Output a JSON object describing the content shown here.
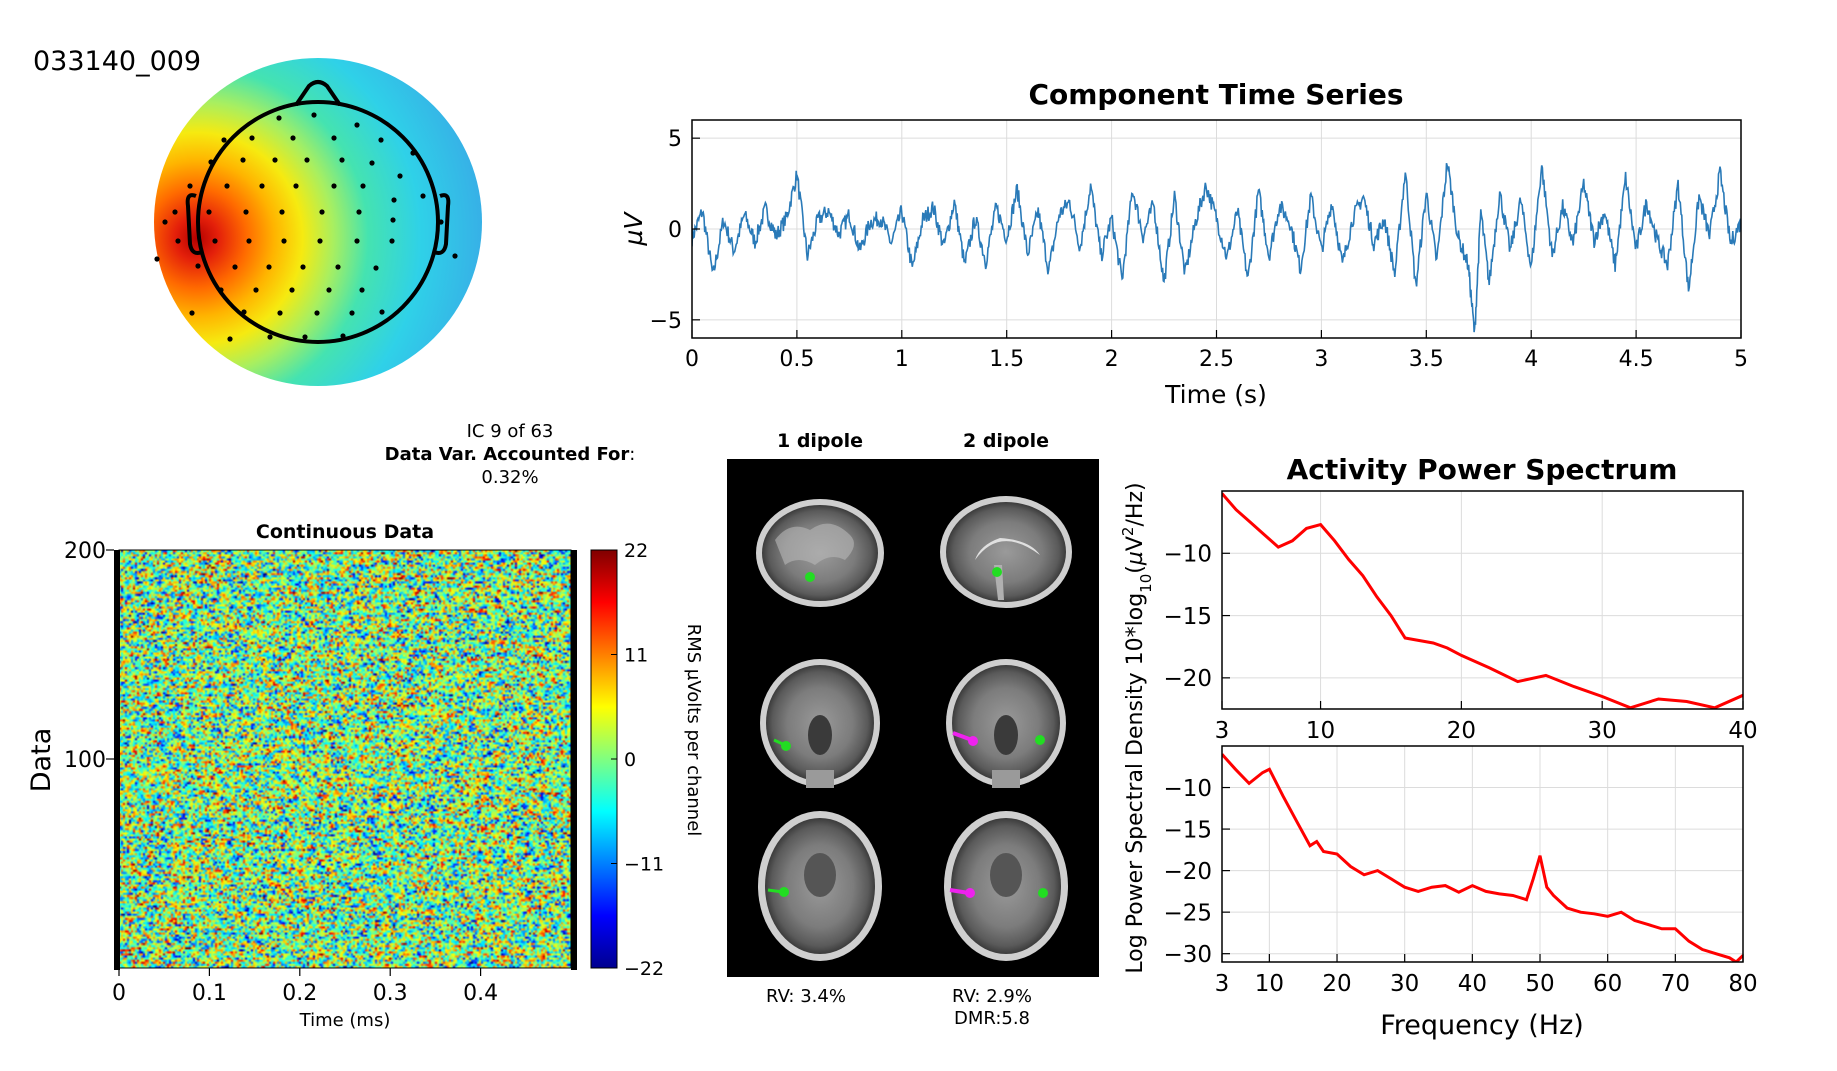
{
  "figure": {
    "component_id": "033140_009",
    "ic_label": "IC 9 of 63",
    "variance_label": "Data Var. Accounted For",
    "variance_value": "0.32%"
  },
  "colors": {
    "trace": "#2a7ab8",
    "spectrum": "#ff0000",
    "axis": "#000000",
    "grid": "#dcdcdc",
    "dipole_1": "#22dd22",
    "dipole_2": "#ee22ee"
  },
  "scalp_map": {
    "channel_count": 63,
    "colormap": "jet",
    "max_region": "left temporal",
    "min_region": "right/posterior"
  },
  "dipole_panel": {
    "col1_title": "1 dipole",
    "col2_title": "2 dipole",
    "views": [
      "sagittal",
      "coronal",
      "axial"
    ],
    "rv1": "RV: 3.4%",
    "rv2": "RV: 2.9%",
    "dmr": "DMR:5.8"
  },
  "chart_data": [
    {
      "id": "time_series",
      "type": "line",
      "title": "Component Time Series",
      "xlabel": "Time (s)",
      "ylabel": "µV",
      "xlim": [
        0,
        5
      ],
      "ylim": [
        -6,
        6
      ],
      "xticks": [
        "0",
        "0.5",
        "1",
        "1.5",
        "2",
        "2.5",
        "3",
        "3.5",
        "4",
        "4.5",
        "5"
      ],
      "yticks": [
        "5",
        "0",
        "−5"
      ],
      "ytick_values": [
        5,
        0,
        -5
      ],
      "grid": true,
      "series": [
        {
          "x": [
            0,
            0.05,
            0.1,
            0.15,
            0.2,
            0.25,
            0.3,
            0.35,
            0.4,
            0.45,
            0.5,
            0.55,
            0.6,
            0.65,
            0.7,
            0.75,
            0.8,
            0.85,
            0.9,
            0.95,
            1.0,
            1.05,
            1.1,
            1.15,
            1.2,
            1.25,
            1.3,
            1.35,
            1.4,
            1.45,
            1.5,
            1.55,
            1.6,
            1.65,
            1.7,
            1.75,
            1.8,
            1.85,
            1.9,
            1.95,
            2.0,
            2.05,
            2.1,
            2.15,
            2.2,
            2.25,
            2.3,
            2.35,
            2.4,
            2.45,
            2.5,
            2.55,
            2.6,
            2.65,
            2.7,
            2.75,
            2.8,
            2.85,
            2.9,
            2.95,
            3.0,
            3.05,
            3.1,
            3.15,
            3.2,
            3.25,
            3.3,
            3.35,
            3.4,
            3.45,
            3.5,
            3.55,
            3.6,
            3.65,
            3.7,
            3.73,
            3.76,
            3.8,
            3.85,
            3.9,
            3.95,
            4.0,
            4.05,
            4.1,
            4.15,
            4.2,
            4.25,
            4.3,
            4.35,
            4.4,
            4.45,
            4.5,
            4.55,
            4.6,
            4.65,
            4.7,
            4.75,
            4.8,
            4.85,
            4.9,
            4.95,
            5.0
          ],
          "y": [
            -0.5,
            1.0,
            -2.6,
            0.5,
            -1.2,
            0.8,
            -0.7,
            1.1,
            -0.4,
            0.6,
            3.0,
            -1.5,
            0.5,
            1.0,
            -0.3,
            0.8,
            -1.2,
            0.4,
            0.6,
            -0.8,
            1.0,
            -2.2,
            0.5,
            1.2,
            -1.0,
            1.5,
            -2.0,
            0.6,
            -1.8,
            1.2,
            -0.5,
            2.2,
            -1.4,
            1.0,
            -2.3,
            0.8,
            1.5,
            -1.0,
            2.4,
            -1.5,
            0.6,
            -2.8,
            2.2,
            -0.4,
            1.4,
            -3.0,
            1.8,
            -2.5,
            0.4,
            2.4,
            0.6,
            -1.6,
            1.0,
            -2.8,
            2.1,
            -1.5,
            1.3,
            0.4,
            -2.2,
            1.8,
            -1.2,
            1.5,
            -2.0,
            0.6,
            1.8,
            -0.8,
            0.6,
            -2.5,
            3.2,
            -3.2,
            2.0,
            -1.8,
            3.7,
            -0.4,
            -2.0,
            -5.8,
            1.0,
            -3.0,
            2.0,
            -1.2,
            1.6,
            -2.2,
            3.5,
            -1.5,
            1.2,
            -0.8,
            2.5,
            -0.6,
            1.0,
            -2.0,
            2.8,
            -1.2,
            1.5,
            -0.6,
            -2.0,
            2.5,
            -3.4,
            1.8,
            -0.4,
            3.1,
            -0.8,
            0.4
          ]
        }
      ]
    },
    {
      "id": "continuous_data",
      "type": "heatmap",
      "title": "Continuous Data",
      "xlabel": "Time (ms)",
      "ylabel": "Data",
      "xlim": [
        0,
        0.5
      ],
      "ylim": [
        0,
        200
      ],
      "xticks": [
        "0",
        "0.1",
        "0.2",
        "0.3",
        "0.4"
      ],
      "yticks": [
        "200",
        "100"
      ],
      "colorbar": {
        "label": "RMS µVolts per channel",
        "ticks": [
          "22",
          "11",
          "0",
          "−11",
          "−22"
        ],
        "values": [
          22,
          11,
          0,
          -11,
          -22
        ],
        "colormap": "jet"
      },
      "trials": 200
    },
    {
      "id": "power_spectrum",
      "type": "line",
      "title": "Activity Power Spectrum",
      "xlabel": "Frequency (Hz)",
      "ylabel": "Log Power Spectral Density 10*log10(µV²/Hz)",
      "subplots": [
        {
          "xlim": [
            3,
            40
          ],
          "ylim": [
            -22.5,
            -5
          ],
          "xticks": [
            "3",
            "10",
            "20",
            "30",
            "40"
          ],
          "xtick_values": [
            3,
            10,
            20,
            30,
            40
          ],
          "yticks": [
            "−10",
            "−15",
            "−20"
          ],
          "ytick_values": [
            -10,
            -15,
            -20
          ],
          "series": [
            {
              "x": [
                3,
                4,
                5,
                6,
                7,
                8,
                9,
                10,
                11,
                12,
                13,
                14,
                15,
                16,
                17,
                18,
                19,
                20,
                22,
                24,
                26,
                28,
                30,
                32,
                34,
                36,
                38,
                40
              ],
              "y": [
                -5.2,
                -6.5,
                -7.5,
                -8.5,
                -9.5,
                -9.0,
                -8.0,
                -7.7,
                -9.0,
                -10.5,
                -11.8,
                -13.5,
                -15.0,
                -16.8,
                -17.0,
                -17.2,
                -17.6,
                -18.2,
                -19.2,
                -20.3,
                -19.8,
                -20.7,
                -21.5,
                -22.4,
                -21.7,
                -21.9,
                -22.4,
                -21.4
              ]
            }
          ]
        },
        {
          "xlim": [
            3,
            80
          ],
          "ylim": [
            -31,
            -5
          ],
          "xticks": [
            "3",
            "10",
            "20",
            "30",
            "40",
            "50",
            "60",
            "70",
            "80"
          ],
          "xtick_values": [
            3,
            10,
            20,
            30,
            40,
            50,
            60,
            70,
            80
          ],
          "yticks": [
            "−10",
            "−15",
            "−20",
            "−25",
            "−30"
          ],
          "ytick_values": [
            -10,
            -15,
            -20,
            -25,
            -30
          ],
          "series": [
            {
              "x": [
                3,
                5,
                7,
                9,
                10,
                12,
                14,
                16,
                17,
                18,
                20,
                22,
                24,
                26,
                28,
                30,
                32,
                34,
                36,
                38,
                40,
                42,
                44,
                46,
                48,
                49,
                50,
                51,
                52,
                54,
                56,
                58,
                60,
                62,
                64,
                66,
                68,
                70,
                72,
                74,
                76,
                78,
                79,
                80
              ],
              "y": [
                -6.0,
                -7.8,
                -9.5,
                -8.2,
                -7.8,
                -11.0,
                -14.0,
                -17.0,
                -16.5,
                -17.7,
                -18.0,
                -19.5,
                -20.5,
                -20.0,
                -21.0,
                -22.0,
                -22.5,
                -22.0,
                -21.8,
                -22.6,
                -21.8,
                -22.5,
                -22.8,
                -23.0,
                -23.5,
                -21.0,
                -18.2,
                -22.0,
                -23.0,
                -24.5,
                -25.0,
                -25.2,
                -25.5,
                -25.0,
                -26.0,
                -26.5,
                -27.0,
                -27.0,
                -28.5,
                -29.5,
                -30.0,
                -30.5,
                -31.0,
                -30.2
              ]
            }
          ]
        }
      ]
    }
  ]
}
